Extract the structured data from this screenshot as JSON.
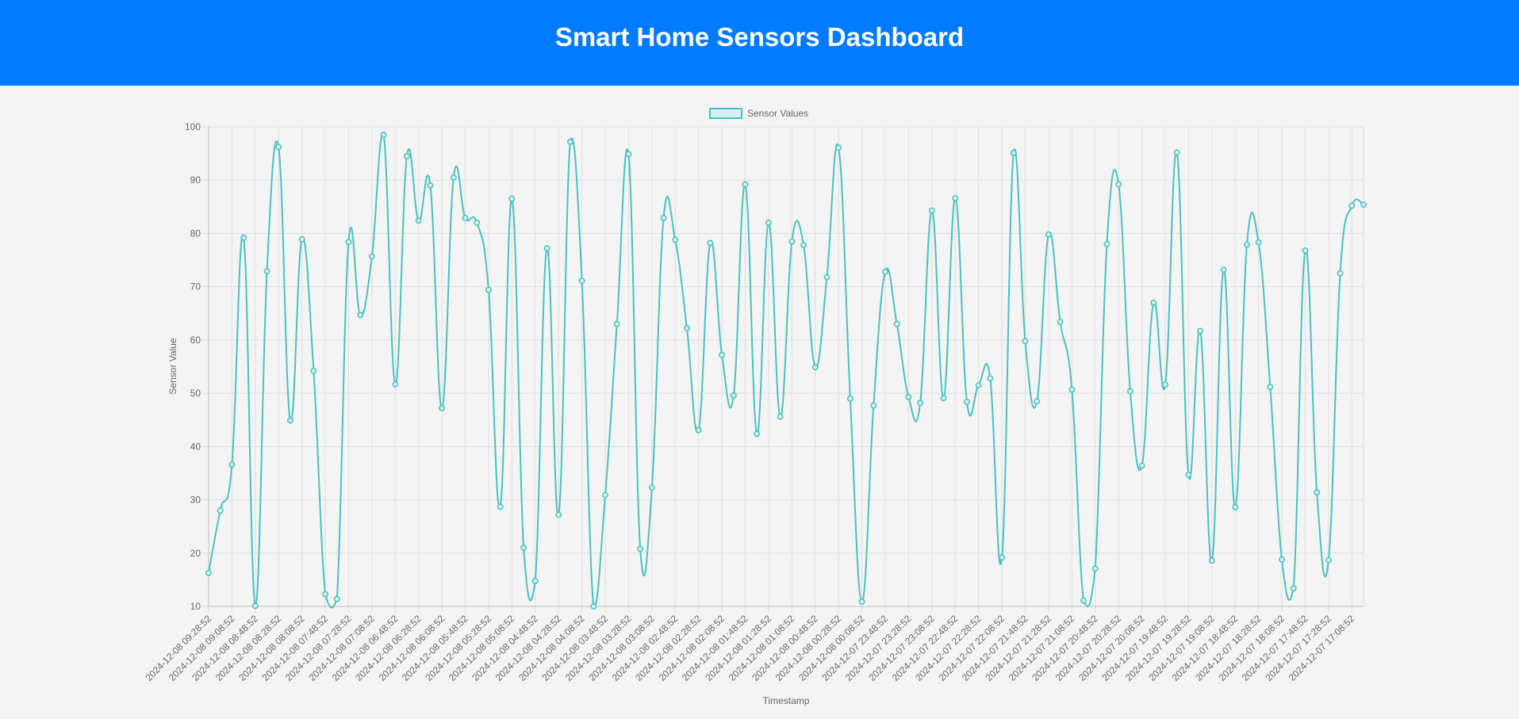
{
  "header": {
    "title": "Smart Home Sensors Dashboard"
  },
  "colors": {
    "header_bg": "#007bff",
    "line": "#4bc0c0",
    "legend_fill": "#d8efef",
    "grid": "#dddddd",
    "page_bg": "#f4f4f4"
  },
  "chart_data": {
    "type": "line",
    "title": "",
    "xlabel": "Timestamp",
    "ylabel": "Sensor Value",
    "ylim": [
      10,
      100
    ],
    "yticks": [
      10,
      20,
      30,
      40,
      50,
      60,
      70,
      80,
      90,
      100
    ],
    "grid": true,
    "legend_position": "top-center",
    "x": [
      "2024-12-08 09:28:52",
      "2024-12-08 09:18:52",
      "2024-12-08 09:08:52",
      "2024-12-08 08:58:52",
      "2024-12-08 08:48:52",
      "2024-12-08 08:38:52",
      "2024-12-08 08:28:52",
      "2024-12-08 08:18:52",
      "2024-12-08 08:08:52",
      "2024-12-08 07:58:52",
      "2024-12-08 07:48:52",
      "2024-12-08 07:38:52",
      "2024-12-08 07:28:52",
      "2024-12-08 07:18:52",
      "2024-12-08 07:08:52",
      "2024-12-08 06:58:52",
      "2024-12-08 06:48:52",
      "2024-12-08 06:38:52",
      "2024-12-08 06:28:52",
      "2024-12-08 06:18:52",
      "2024-12-08 06:08:52",
      "2024-12-08 05:58:52",
      "2024-12-08 05:48:52",
      "2024-12-08 05:38:52",
      "2024-12-08 05:28:52",
      "2024-12-08 05:18:52",
      "2024-12-08 05:08:52",
      "2024-12-08 04:58:52",
      "2024-12-08 04:48:52",
      "2024-12-08 04:38:52",
      "2024-12-08 04:28:52",
      "2024-12-08 04:18:52",
      "2024-12-08 04:08:52",
      "2024-12-08 03:58:52",
      "2024-12-08 03:48:52",
      "2024-12-08 03:38:52",
      "2024-12-08 03:28:52",
      "2024-12-08 03:18:52",
      "2024-12-08 03:08:52",
      "2024-12-08 02:58:52",
      "2024-12-08 02:48:52",
      "2024-12-08 02:38:52",
      "2024-12-08 02:28:52",
      "2024-12-08 02:18:52",
      "2024-12-08 02:08:52",
      "2024-12-08 01:58:52",
      "2024-12-08 01:48:52",
      "2024-12-08 01:38:52",
      "2024-12-08 01:28:52",
      "2024-12-08 01:18:52",
      "2024-12-08 01:08:52",
      "2024-12-08 00:58:52",
      "2024-12-08 00:48:52",
      "2024-12-08 00:38:52",
      "2024-12-08 00:28:52",
      "2024-12-08 00:18:52",
      "2024-12-08 00:08:52",
      "2024-12-07 23:58:52",
      "2024-12-07 23:48:52",
      "2024-12-07 23:38:52",
      "2024-12-07 23:28:52",
      "2024-12-07 23:18:52",
      "2024-12-07 23:08:52",
      "2024-12-07 22:58:52",
      "2024-12-07 22:48:52",
      "2024-12-07 22:38:52",
      "2024-12-07 22:28:52",
      "2024-12-07 22:18:52",
      "2024-12-07 22:08:52",
      "2024-12-07 21:58:52",
      "2024-12-07 21:48:52",
      "2024-12-07 21:38:52",
      "2024-12-07 21:28:52",
      "2024-12-07 21:18:52",
      "2024-12-07 21:08:52",
      "2024-12-07 20:58:52",
      "2024-12-07 20:48:52",
      "2024-12-07 20:38:52",
      "2024-12-07 20:28:52",
      "2024-12-07 20:18:52",
      "2024-12-07 20:08:52",
      "2024-12-07 19:58:52",
      "2024-12-07 19:48:52",
      "2024-12-07 19:38:52",
      "2024-12-07 19:28:52",
      "2024-12-07 19:18:52",
      "2024-12-07 19:08:52",
      "2024-12-07 18:58:52",
      "2024-12-07 18:48:52",
      "2024-12-07 18:38:52",
      "2024-12-07 18:28:52",
      "2024-12-07 18:18:52",
      "2024-12-07 18:08:52",
      "2024-12-07 17:58:52",
      "2024-12-07 17:48:52",
      "2024-12-07 17:38:52",
      "2024-12-07 17:28:52",
      "2024-12-07 17:18:52",
      "2024-12-07 17:08:52",
      "2024-12-07 16:58:52"
    ],
    "series": [
      {
        "name": "Sensor Values",
        "values": [
          16.3,
          28.0,
          36.6,
          79.2,
          10.1,
          72.9,
          96.2,
          44.9,
          78.9,
          54.2,
          12.3,
          11.4,
          78.4,
          64.7,
          75.7,
          98.5,
          51.7,
          94.5,
          82.4,
          89.0,
          47.2,
          90.5,
          82.9,
          82.0,
          69.4,
          28.7,
          86.5,
          21.0,
          14.8,
          77.2,
          27.2,
          97.2,
          71.1,
          10.0,
          30.9,
          63.0,
          94.9,
          20.8,
          32.3,
          82.9,
          78.8,
          62.2,
          43.1,
          78.2,
          57.2,
          49.6,
          89.2,
          42.4,
          82.0,
          45.6,
          78.5,
          77.8,
          54.9,
          71.8,
          96.1,
          49.0,
          10.9,
          47.7,
          72.8,
          63.0,
          49.3,
          48.2,
          84.3,
          49.1,
          86.6,
          48.4,
          51.5,
          52.8,
          19.2,
          95.1,
          59.8,
          48.5,
          79.8,
          63.4,
          50.7,
          11.1,
          17.1,
          78.0,
          89.2,
          50.4,
          36.4,
          67.0,
          51.6,
          95.2,
          34.7,
          61.7,
          18.6,
          73.2,
          28.6,
          77.9,
          78.3,
          51.2,
          18.8,
          13.4,
          76.8,
          31.4,
          18.7,
          72.5,
          85.2,
          85.4
        ]
      }
    ],
    "xtick_labels_shown": [
      "2024-12-08 09:28:52",
      "2024-12-08 09:08:52",
      "2024-12-08 08:48:52",
      "2024-12-08 08:28:52",
      "2024-12-08 08:08:52",
      "2024-12-08 07:48:52",
      "2024-12-08 07:28:52",
      "2024-12-08 07:08:52",
      "2024-12-08 06:48:52",
      "2024-12-08 06:28:52",
      "2024-12-08 06:08:52",
      "2024-12-08 05:48:52",
      "2024-12-08 05:28:52",
      "2024-12-08 05:08:52",
      "2024-12-08 04:48:52",
      "2024-12-08 04:28:52",
      "2024-12-08 04:08:52",
      "2024-12-08 03:48:52",
      "2024-12-08 03:28:52",
      "2024-12-08 03:08:52",
      "2024-12-08 02:48:52",
      "2024-12-08 02:28:52",
      "2024-12-08 02:08:52",
      "2024-12-08 01:48:52",
      "2024-12-08 01:28:52",
      "2024-12-08 01:08:52",
      "2024-12-08 00:48:52",
      "2024-12-08 00:28:52",
      "2024-12-08 00:08:52",
      "2024-12-07 23:48:52",
      "2024-12-07 23:28:52",
      "2024-12-07 23:08:52",
      "2024-12-07 22:48:52",
      "2024-12-07 22:28:52",
      "2024-12-07 22:08:52",
      "2024-12-07 21:48:52",
      "2024-12-07 21:28:52",
      "2024-12-07 21:08:52",
      "2024-12-07 20:48:52",
      "2024-12-07 20:28:52",
      "2024-12-07 20:08:52",
      "2024-12-07 19:48:52",
      "2024-12-07 19:28:52",
      "2024-12-07 19:08:52",
      "2024-12-07 18:48:52",
      "2024-12-07 18:28:52",
      "2024-12-07 18:08:52",
      "2024-12-07 17:48:52",
      "2024-12-07 17:28:52",
      "2024-12-07 17:08:52"
    ]
  }
}
